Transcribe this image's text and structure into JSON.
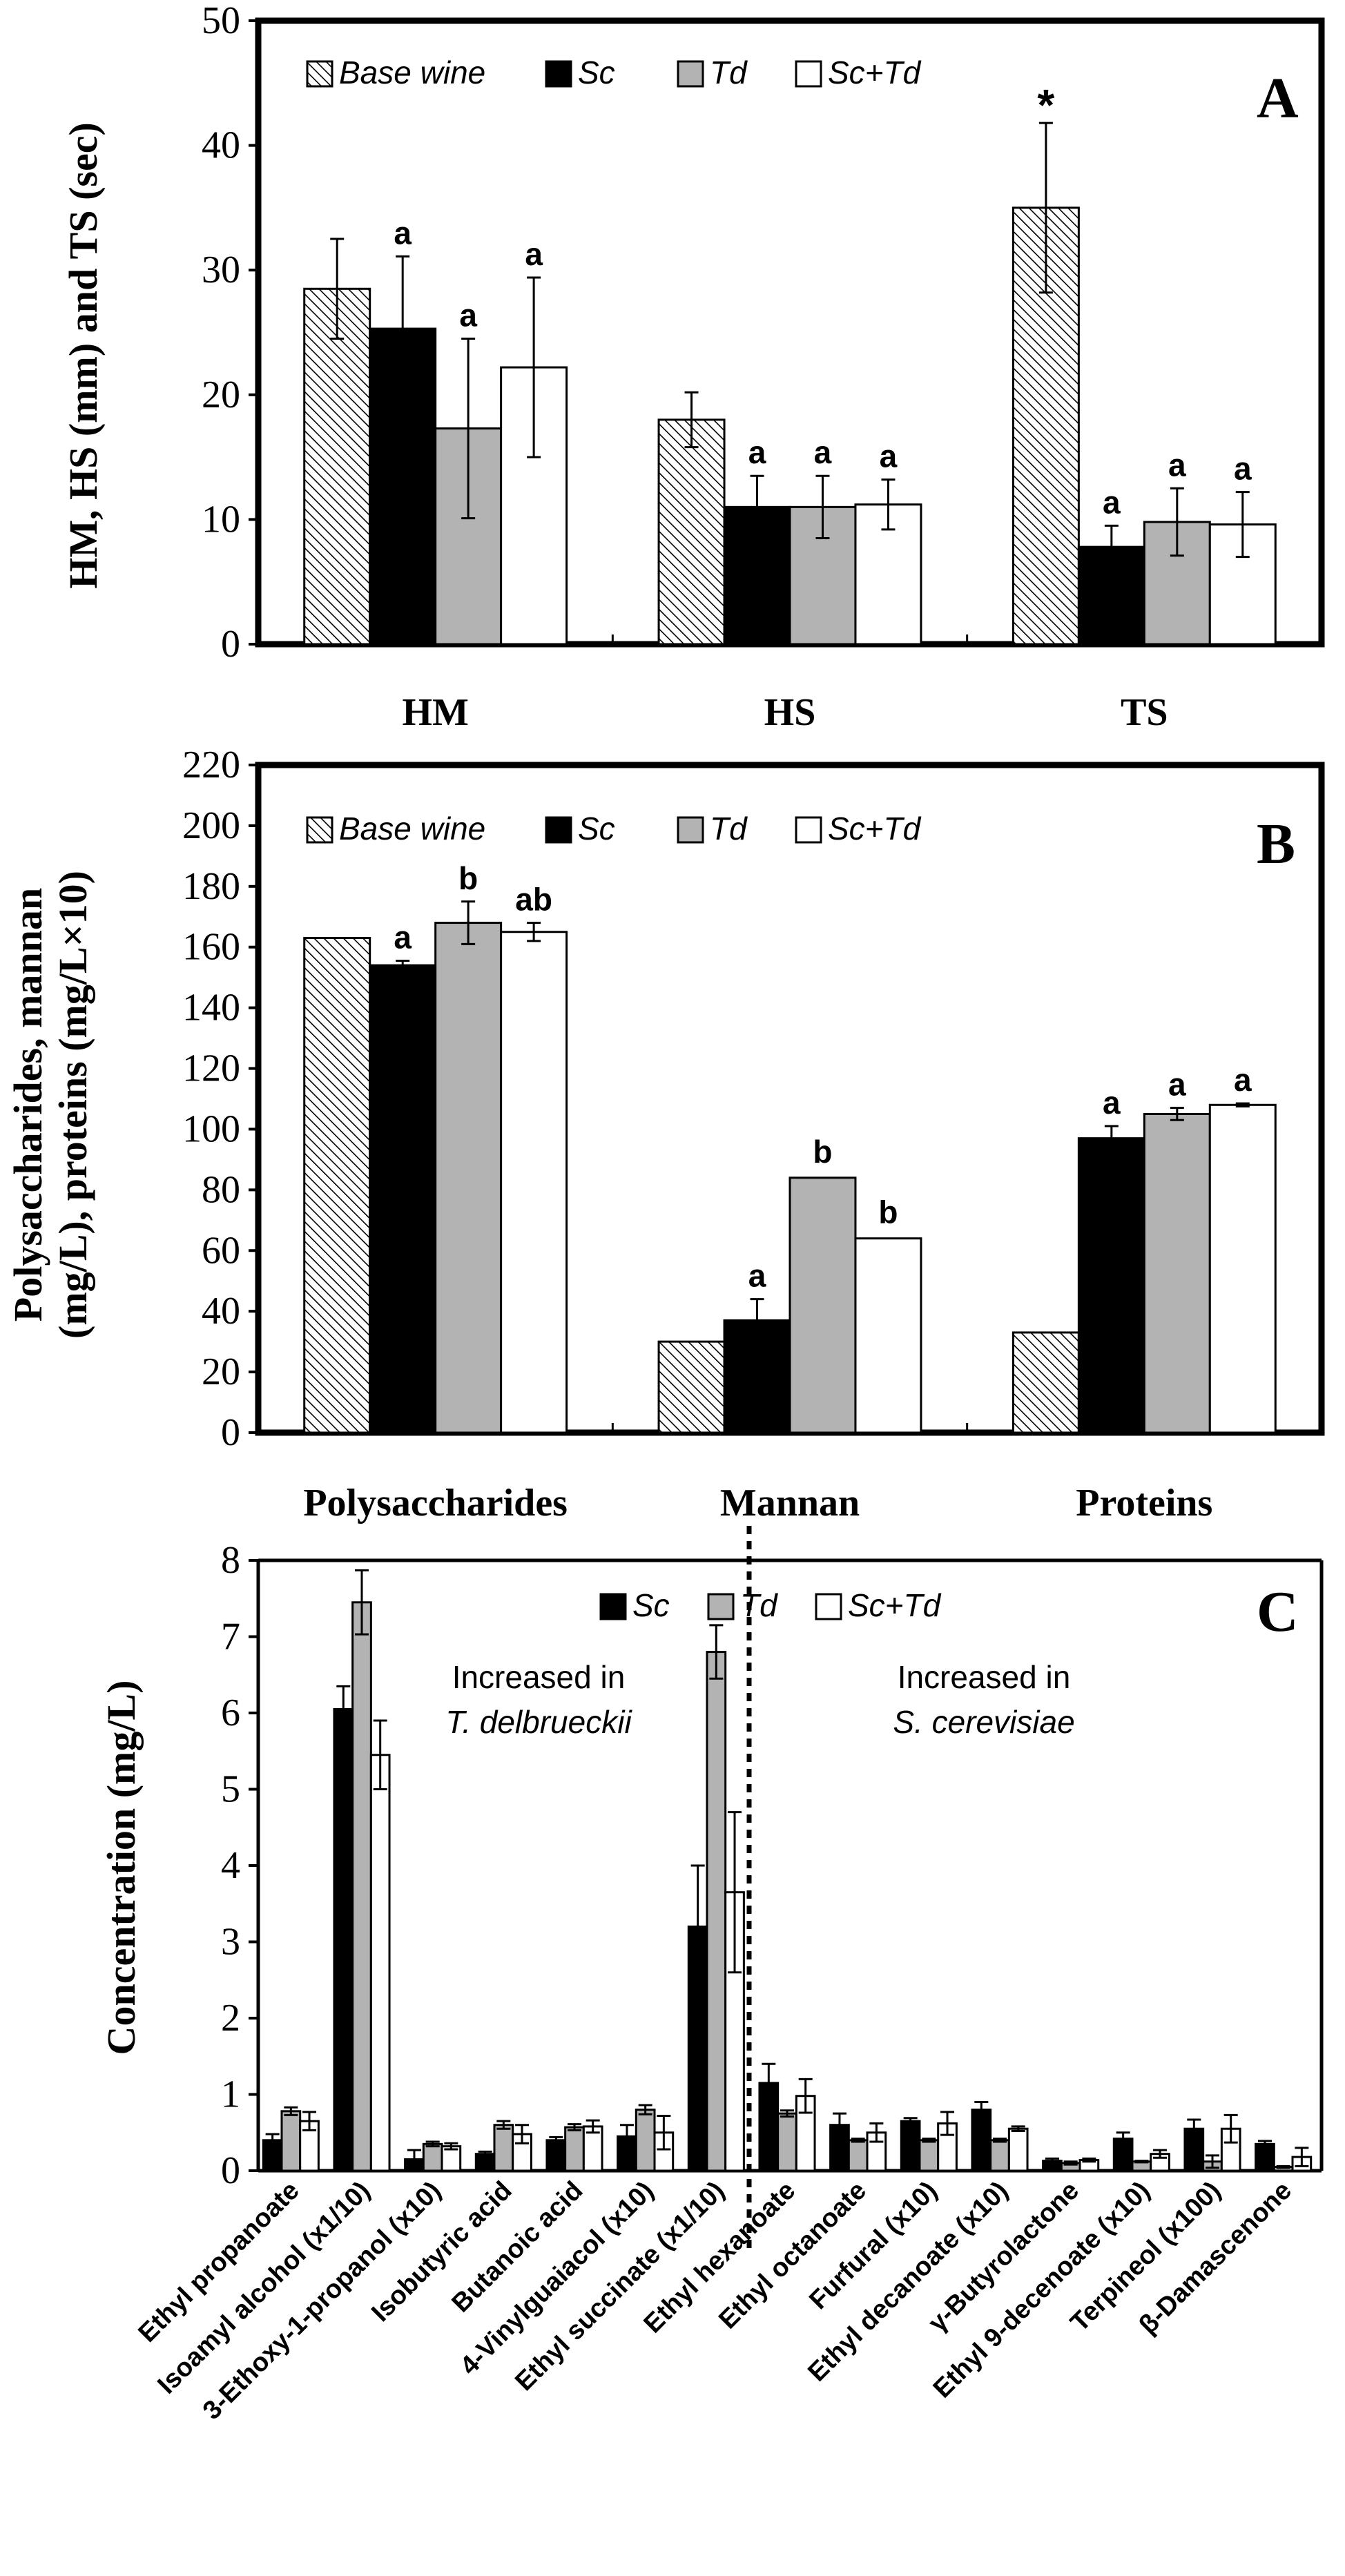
{
  "chart_data": [
    {
      "type": "bar",
      "panel": "A",
      "categories": [
        "HM",
        "HS",
        "TS"
      ],
      "ylabel": "HM, HS (mm) and TS (sec)",
      "ylim": [
        0,
        50
      ],
      "ticks": [
        0,
        10,
        20,
        30,
        40,
        50
      ],
      "legend_position": "top-left",
      "series": [
        {
          "name": "Base wine",
          "style": "hatch",
          "values": [
            28.5,
            18.0,
            35.0
          ],
          "errors": [
            4.0,
            2.2,
            6.8
          ],
          "labels": [
            "",
            "",
            "*"
          ]
        },
        {
          "name": "Sc",
          "style": "black",
          "values": [
            25.3,
            11.0,
            7.8
          ],
          "errors": [
            5.8,
            2.5,
            1.7
          ],
          "labels": [
            "a",
            "a",
            "a"
          ]
        },
        {
          "name": "Td",
          "style": "gray",
          "values": [
            17.3,
            11.0,
            9.8
          ],
          "errors": [
            7.2,
            2.5,
            2.7
          ],
          "labels": [
            "a",
            "a",
            "a"
          ]
        },
        {
          "name": "Sc+Td",
          "style": "white",
          "values": [
            22.2,
            11.2,
            9.6
          ],
          "errors": [
            7.2,
            2.0,
            2.6
          ],
          "labels": [
            "a",
            "a",
            "a"
          ]
        }
      ]
    },
    {
      "type": "bar",
      "panel": "B",
      "categories": [
        "Polysaccharides",
        "Mannan",
        "Proteins"
      ],
      "ylabel_lines": [
        "Polysaccharides, mannan",
        "(mg/L), proteins (mg/L×10)"
      ],
      "ylim": [
        0,
        220
      ],
      "ticks": [
        0,
        20,
        40,
        60,
        80,
        100,
        120,
        140,
        160,
        180,
        200,
        220
      ],
      "legend_position": "top-left",
      "series": [
        {
          "name": "Base wine",
          "style": "hatch",
          "values": [
            163,
            30,
            33
          ],
          "errors": [
            0,
            0,
            0
          ],
          "labels": [
            "",
            "",
            ""
          ]
        },
        {
          "name": "Sc",
          "style": "black",
          "values": [
            154,
            37,
            97
          ],
          "errors": [
            1.5,
            7,
            4
          ],
          "labels": [
            "a",
            "a",
            "a"
          ]
        },
        {
          "name": "Td",
          "style": "gray",
          "values": [
            168,
            84,
            105
          ],
          "errors": [
            7,
            0,
            2
          ],
          "labels": [
            "b",
            "b",
            "a"
          ]
        },
        {
          "name": "Sc+Td",
          "style": "white",
          "values": [
            165,
            64,
            108
          ],
          "errors": [
            3,
            0,
            0.5
          ],
          "labels": [
            "ab",
            "b",
            "a"
          ]
        }
      ]
    },
    {
      "type": "bar",
      "panel": "C",
      "categories": [
        "Ethyl propanoate",
        "Isoamyl alcohol (x1/10)",
        "3-Ethoxy-1-propanol (x10)",
        "Isobutyric acid",
        "Butanoic acid",
        "4-Vinylguaiacol (x10)",
        "Ethyl succinate (x1/10)",
        "Ethyl hexanoate",
        "Ethyl octanoate",
        "Furfural (x10)",
        "Ethyl decanoate (x10)",
        "γ-Butyrolactone",
        "Ethyl 9-decenoate (x10)",
        "Terpineol (x100)",
        "β-Damascenone"
      ],
      "ylabel": "Concentration (mg/L)",
      "ylim": [
        0,
        8
      ],
      "ticks": [
        0,
        1,
        2,
        3,
        4,
        5,
        6,
        7,
        8
      ],
      "legend_position": "top-center",
      "divider_after_index": 6,
      "annotations": [
        {
          "line1": "Increased in",
          "line2": "T. delbrueckii"
        },
        {
          "line1": "Increased in",
          "line2": "S. cerevisiae"
        }
      ],
      "series": [
        {
          "name": "Sc",
          "style": "black",
          "values": [
            0.4,
            6.05,
            0.15,
            0.22,
            0.4,
            0.45,
            3.2,
            1.15,
            0.6,
            0.65,
            0.8,
            0.13,
            0.42,
            0.55,
            0.35
          ],
          "errors": [
            0.08,
            0.3,
            0.12,
            0.03,
            0.04,
            0.15,
            0.8,
            0.25,
            0.15,
            0.04,
            0.1,
            0.03,
            0.08,
            0.12,
            0.04
          ]
        },
        {
          "name": "Td",
          "style": "gray",
          "values": [
            0.78,
            7.45,
            0.35,
            0.6,
            0.57,
            0.8,
            6.8,
            0.75,
            0.4,
            0.4,
            0.4,
            0.1,
            0.12,
            0.12,
            0.05
          ]
        },
        {
          "name": "Sc+Td",
          "style": "white",
          "values": [
            0.65,
            5.45,
            0.32,
            0.48,
            0.58,
            0.5,
            3.65,
            0.98,
            0.5,
            0.62,
            0.55,
            0.14,
            0.22,
            0.55,
            0.18
          ],
          "errors": [
            0.12,
            0.45,
            0.04,
            0.12,
            0.08,
            0.22,
            1.05,
            0.22,
            0.12,
            0.15,
            0.03,
            0.02,
            0.05,
            0.18,
            0.12
          ]
        }
      ],
      "td_errors": [
        0.05,
        0.42,
        0.03,
        0.05,
        0.04,
        0.06,
        0.35,
        0.04,
        0.02,
        0.02,
        0.02,
        0.02,
        0.01,
        0.08,
        0.01
      ]
    }
  ]
}
